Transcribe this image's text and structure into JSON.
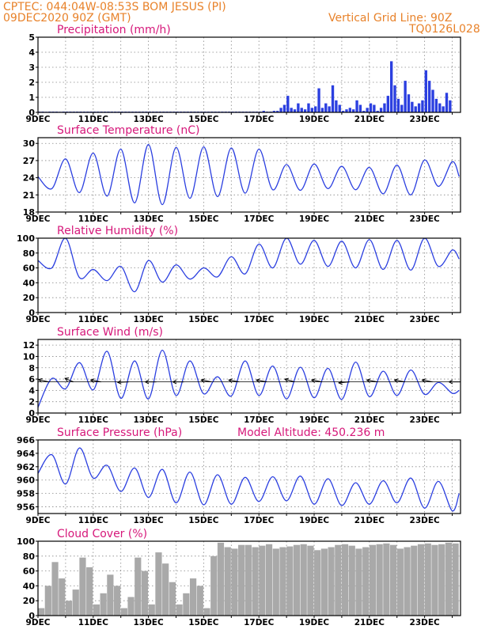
{
  "header": {
    "station": "CPTEC:   044:04W-08:53S   BOM JESUS (PI)",
    "date": "09DEC2020 90Z (GMT)",
    "grid_line": "Vertical Grid Line: 90Z",
    "code": "TQ0126L028"
  },
  "model_altitude": "Model Altitude: 450.236  m",
  "colors": {
    "header": "#e8822a",
    "title": "#d6187a",
    "line": "#2b3fe0",
    "cloud": "#a9a9a9",
    "precip": "#2b3fe0"
  },
  "chart_data": [
    {
      "type": "bar",
      "title": "Precipitation (mm/h)",
      "x_tick_labels": [
        "9DEC",
        "11DEC",
        "13DEC",
        "15DEC",
        "17DEC",
        "19DEC",
        "21DEC",
        "23DEC"
      ],
      "ylim": [
        0,
        5
      ],
      "y_ticks": [
        0,
        1,
        2,
        3,
        4,
        5
      ],
      "grid": "dotted",
      "x_days": [
        0,
        0.125,
        0.25,
        0.375,
        0.5,
        0.625,
        0.75,
        0.875,
        1,
        1.125,
        1.25,
        1.375,
        1.5,
        1.625,
        1.75,
        1.875,
        2,
        2.125,
        2.25,
        2.375,
        2.5,
        2.625,
        2.75,
        2.875,
        3,
        3.125,
        3.25,
        3.375,
        3.5,
        3.625,
        3.75,
        3.875,
        4,
        4.125,
        4.25,
        4.375,
        4.5,
        4.625,
        4.75,
        4.875,
        5,
        5.125,
        5.25,
        5.375,
        5.5,
        5.625,
        5.75,
        5.875,
        6,
        6.125,
        6.25,
        6.375,
        6.5,
        6.625,
        6.75,
        6.875,
        7,
        7.125,
        7.25,
        7.375,
        7.5,
        7.625,
        7.75,
        7.875,
        8,
        8.125,
        8.25,
        8.375,
        8.5,
        8.625,
        8.75,
        8.875,
        9,
        9.125,
        9.25,
        9.375,
        9.5,
        9.625,
        9.75,
        9.875,
        10,
        10.125,
        10.25,
        10.375,
        10.5,
        10.625,
        10.75,
        10.875,
        11,
        11.125,
        11.25,
        11.375,
        11.5,
        11.625,
        11.75,
        11.875,
        12,
        12.125,
        12.25,
        12.375,
        12.5,
        12.625,
        12.75,
        12.875,
        13,
        13.125,
        13.25,
        13.375,
        13.5,
        13.625,
        13.75,
        13.875,
        14,
        14.125,
        14.25,
        14.375,
        14.5,
        14.625,
        14.75,
        14.875
      ],
      "values": [
        0.05,
        0.05,
        0.04,
        0.05,
        0.05,
        0.05,
        0.04,
        0.05,
        0.05,
        0.05,
        0.05,
        0.05,
        0.05,
        0.05,
        0.05,
        0.05,
        0.05,
        0.05,
        0.05,
        0.05,
        0.05,
        0.05,
        0.05,
        0.05,
        0.05,
        0.05,
        0.05,
        0.05,
        0.05,
        0.05,
        0.05,
        0.05,
        0.05,
        0.05,
        0.05,
        0.05,
        0.05,
        0.05,
        0.05,
        0.05,
        0.05,
        0.05,
        0.05,
        0.05,
        0.05,
        0.05,
        0.05,
        0.05,
        0.05,
        0.05,
        0.05,
        0.05,
        0.05,
        0.05,
        0.05,
        0.05,
        0.05,
        0.05,
        0.05,
        0.05,
        0.05,
        0.05,
        0.05,
        0.05,
        0.05,
        0.1,
        0.05,
        0.05,
        0.1,
        0.1,
        0.3,
        0.5,
        1.1,
        0.3,
        0.2,
        0.6,
        0.3,
        0.2,
        0.6,
        0.3,
        0.4,
        1.6,
        0.3,
        0.6,
        0.4,
        1.8,
        0.8,
        0.5,
        0.1,
        0.2,
        0.3,
        0.2,
        0.8,
        0.5,
        0.1,
        0.3,
        0.6,
        0.5,
        0.1,
        0.3,
        0.6,
        1.1,
        3.4,
        1.8,
        0.9,
        0.5,
        2.1,
        1.2,
        0.7,
        0.4,
        0.6,
        0.8,
        2.8,
        2.1,
        1.5,
        0.9,
        0.6,
        0.4,
        1.3,
        0.8
      ],
      "values_extra": {
        "x_days": [
          15.0
        ],
        "values": [
          0
        ]
      }
    },
    {
      "type": "line",
      "title": "Surface Temperature (nC)",
      "x_tick_labels": [
        "9DEC",
        "11DEC",
        "13DEC",
        "15DEC",
        "17DEC",
        "19DEC",
        "21DEC",
        "23DEC"
      ],
      "ylim": [
        18,
        31
      ],
      "y_ticks": [
        18,
        21,
        24,
        27,
        30
      ],
      "grid": "dotted",
      "x_days": [
        0,
        0.5,
        1,
        1.5,
        2,
        2.5,
        3,
        3.5,
        4,
        4.5,
        5,
        5.5,
        6,
        6.5,
        7,
        7.5,
        8,
        8.5,
        9,
        9.5,
        10,
        10.5,
        11,
        11.5,
        12,
        12.5,
        13,
        13.5,
        14,
        14.5,
        15,
        15.25
      ],
      "values": [
        24.2,
        22.1,
        27.3,
        21.4,
        28.3,
        20.8,
        29.0,
        19.6,
        29.8,
        19.3,
        29.3,
        20.4,
        29.4,
        20.7,
        29.2,
        21.3,
        29.0,
        21.9,
        26.3,
        21.8,
        26.4,
        22.1,
        26.0,
        21.9,
        25.8,
        21.2,
        26.2,
        21.0,
        27.1,
        22.5,
        26.8,
        24.2
      ]
    },
    {
      "type": "line",
      "title": "Relative Humidity (%)",
      "x_tick_labels": [
        "9DEC",
        "11DEC",
        "13DEC",
        "15DEC",
        "17DEC",
        "19DEC",
        "21DEC",
        "23DEC"
      ],
      "ylim": [
        0,
        100
      ],
      "y_ticks": [
        0,
        20,
        40,
        60,
        80,
        100
      ],
      "grid": "dotted",
      "x_days": [
        0,
        0.5,
        1,
        1.5,
        2,
        2.5,
        3,
        3.5,
        4,
        4.5,
        5,
        5.5,
        6,
        6.5,
        7,
        7.5,
        8,
        8.5,
        9,
        9.5,
        10,
        10.5,
        11,
        11.5,
        12,
        12.5,
        13,
        13.5,
        14,
        14.5,
        15,
        15.25
      ],
      "values": [
        70,
        60,
        100,
        47,
        58,
        43,
        62,
        28,
        70,
        41,
        64,
        45,
        60,
        48,
        75,
        52,
        92,
        60,
        100,
        65,
        97,
        62,
        96,
        60,
        98,
        58,
        97,
        57,
        100,
        62,
        84,
        72
      ]
    },
    {
      "type": "line",
      "title": "Surface Wind (m/s)",
      "x_tick_labels": [
        "9DEC",
        "11DEC",
        "13DEC",
        "15DEC",
        "17DEC",
        "19DEC",
        "21DEC",
        "23DEC"
      ],
      "ylim": [
        0,
        13
      ],
      "y_ticks": [
        0,
        2,
        4,
        6,
        8,
        10,
        12
      ],
      "grid": "dotted",
      "x_days": [
        0,
        0.5,
        1,
        1.5,
        2,
        2.5,
        3,
        3.5,
        4,
        4.5,
        5,
        5.5,
        6,
        6.5,
        7,
        7.5,
        8,
        8.5,
        9,
        9.5,
        10,
        10.5,
        11,
        11.5,
        12,
        12.5,
        13,
        13.5,
        14,
        14.5,
        15,
        15.25
      ],
      "values": [
        1.0,
        6.1,
        4.3,
        8.9,
        4.1,
        10.9,
        2.6,
        9.2,
        2.5,
        11.1,
        3.1,
        9.2,
        3.4,
        6.4,
        3.0,
        9.2,
        3.1,
        8.3,
        2.5,
        8.1,
        2.7,
        7.9,
        2.4,
        9.0,
        2.9,
        7.4,
        3.1,
        7.6,
        3.3,
        5.4,
        3.5,
        4.0
      ],
      "wind_barbs": [
        {
          "x_day": 0.1,
          "speed": 5,
          "dir_deg": 205
        },
        {
          "x_day": 1.0,
          "speed": 4,
          "dir_deg": 220
        },
        {
          "x_day": 2.0,
          "speed": 6,
          "dir_deg": 200
        },
        {
          "x_day": 3.0,
          "speed": 6,
          "dir_deg": 175
        },
        {
          "x_day": 4.0,
          "speed": 6,
          "dir_deg": 180
        },
        {
          "x_day": 5.0,
          "speed": 6,
          "dir_deg": 180
        },
        {
          "x_day": 6.0,
          "speed": 5,
          "dir_deg": 200
        },
        {
          "x_day": 7.0,
          "speed": 5,
          "dir_deg": 200
        },
        {
          "x_day": 8.0,
          "speed": 5,
          "dir_deg": 200
        },
        {
          "x_day": 9.0,
          "speed": 5,
          "dir_deg": 210
        },
        {
          "x_day": 10.0,
          "speed": 5,
          "dir_deg": 200
        },
        {
          "x_day": 11.0,
          "speed": 5,
          "dir_deg": 170
        },
        {
          "x_day": 12.0,
          "speed": 5,
          "dir_deg": 200
        },
        {
          "x_day": 13.0,
          "speed": 5,
          "dir_deg": 200
        },
        {
          "x_day": 14.0,
          "speed": 5,
          "dir_deg": 200
        },
        {
          "x_day": 15.0,
          "speed": 5,
          "dir_deg": 180
        }
      ]
    },
    {
      "type": "line",
      "title": "Surface Pressure (hPa)",
      "x_tick_labels": [
        "9DEC",
        "11DEC",
        "13DEC",
        "15DEC",
        "17DEC",
        "19DEC",
        "21DEC",
        "23DEC"
      ],
      "ylim": [
        955,
        966
      ],
      "y_ticks": [
        956,
        958,
        960,
        962,
        964,
        966
      ],
      "grid": "dotted",
      "x_days": [
        0,
        0.5,
        1,
        1.5,
        2,
        2.5,
        3,
        3.5,
        4,
        4.5,
        5,
        5.5,
        6,
        6.5,
        7,
        7.5,
        8,
        8.5,
        9,
        9.5,
        10,
        10.5,
        11,
        11.5,
        12,
        12.5,
        13,
        13.5,
        14,
        14.5,
        15,
        15.25
      ],
      "values": [
        961,
        963.8,
        959.4,
        964.8,
        960.3,
        962.2,
        958.3,
        961.8,
        957.4,
        961.6,
        956.6,
        961.2,
        956.3,
        960.8,
        956.4,
        960.4,
        956.8,
        960.5,
        956.9,
        960.6,
        956.4,
        960.2,
        956.2,
        959.6,
        956.4,
        959.9,
        956.6,
        960.3,
        955.8,
        959.8,
        955.4,
        958.0
      ]
    },
    {
      "type": "bar",
      "title": "Cloud Cover (%)",
      "x_tick_labels": [
        "9DEC",
        "11DEC",
        "13DEC",
        "15DEC",
        "17DEC",
        "19DEC",
        "21DEC",
        "23DEC"
      ],
      "ylim": [
        0,
        100
      ],
      "y_ticks": [
        0,
        20,
        40,
        60,
        80,
        100
      ],
      "grid": "dotted",
      "x_days": [
        0,
        0.25,
        0.5,
        0.75,
        1,
        1.25,
        1.5,
        1.75,
        2,
        2.25,
        2.5,
        2.75,
        3,
        3.25,
        3.5,
        3.75,
        4,
        4.25,
        4.5,
        4.75,
        5,
        5.25,
        5.5,
        5.75,
        6,
        6.25,
        6.5,
        6.75,
        7,
        7.25,
        7.5,
        7.75,
        8,
        8.25,
        8.5,
        8.75,
        9,
        9.25,
        9.5,
        9.75,
        10,
        10.25,
        10.5,
        10.75,
        11,
        11.25,
        11.5,
        11.75,
        12,
        12.25,
        12.5,
        12.75,
        13,
        13.25,
        13.5,
        13.75,
        14,
        14.25,
        14.5,
        14.75,
        15
      ],
      "values": [
        10,
        40,
        72,
        50,
        20,
        35,
        78,
        65,
        15,
        30,
        55,
        40,
        10,
        25,
        78,
        60,
        15,
        85,
        70,
        45,
        15,
        30,
        50,
        40,
        10,
        80,
        98,
        92,
        90,
        95,
        95,
        92,
        94,
        96,
        90,
        92,
        93,
        95,
        96,
        94,
        88,
        90,
        92,
        95,
        96,
        94,
        90,
        92,
        95,
        96,
        97,
        95,
        90,
        92,
        94,
        96,
        97,
        95,
        96,
        98,
        97
      ]
    }
  ]
}
